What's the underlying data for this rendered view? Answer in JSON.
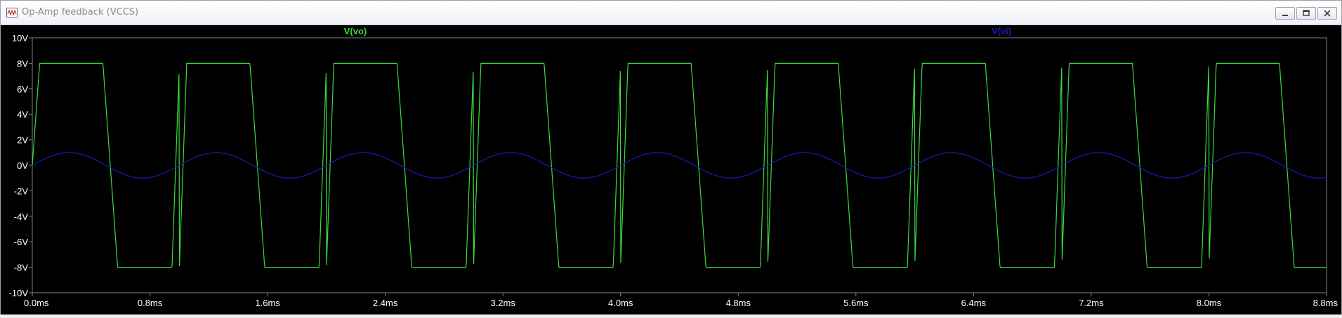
{
  "window": {
    "title": "Op-Amp feedback (VCCS)",
    "minimize_icon": "minimize-icon",
    "maximize_icon": "restore-icon",
    "close_icon": "close-icon"
  },
  "colors": {
    "background": "#000000",
    "axis": "#808080",
    "tick_text": "#ffffff",
    "vo": "#3cdc3c",
    "vi": "#1a1ab4"
  },
  "chart_data": {
    "type": "line",
    "title": "",
    "xlabel": "",
    "ylabel": "",
    "xlim": [
      0,
      8.8
    ],
    "ylim": [
      -10,
      10
    ],
    "grid": false,
    "x_ticks": [
      "0.0ms",
      "0.8ms",
      "1.6ms",
      "2.4ms",
      "3.2ms",
      "4.0ms",
      "4.8ms",
      "5.6ms",
      "6.4ms",
      "7.2ms",
      "8.0ms",
      "8.8ms"
    ],
    "y_ticks": [
      "10V",
      "8V",
      "6V",
      "4V",
      "2V",
      "0V",
      "-2V",
      "-4V",
      "-6V",
      "-8V",
      "-10V"
    ],
    "series": [
      {
        "name": "V(vo)",
        "color": "#3cdc3c",
        "shape": "clipped square wave, inverted sine comparator",
        "amplitude_v": 8,
        "period_ms": 1.0,
        "edge_ms": 0.05,
        "high_v": 8,
        "low_v": -8,
        "start_v": 0
      },
      {
        "name": "V(vi)",
        "color": "#1a1ab4",
        "shape": "sine",
        "amplitude_v": 1,
        "period_ms": 1.0,
        "offset_v": 0
      }
    ]
  }
}
